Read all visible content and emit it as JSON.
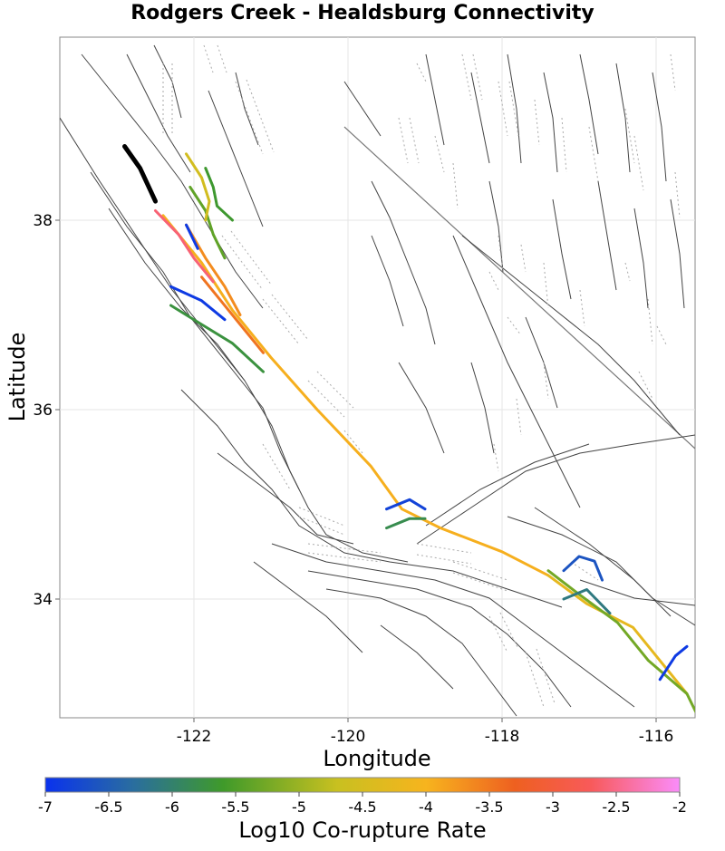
{
  "map": {
    "title": "Rodgers Creek - Healdsburg Connectivity",
    "xlabel": "Longitude",
    "ylabel": "Latitude",
    "x_ticks": [
      -122,
      -120,
      -118,
      -116
    ],
    "y_ticks": [
      34,
      36,
      38
    ],
    "xlim": [
      -123.75,
      -115.3
    ],
    "ylim": [
      32.8,
      40.0
    ],
    "grid": true
  },
  "colorbar": {
    "title": "Log10 Co-rupture Rate",
    "ticks": [
      "-7",
      "-6.5",
      "-6",
      "-5.5",
      "-5",
      "-4.5",
      "-4",
      "-3.5",
      "-3",
      "-2.5",
      "-2"
    ],
    "range": [
      -7,
      -2
    ],
    "colors": [
      "#0a32ee",
      "#2a6e9e",
      "#3f9a2a",
      "#c8c020",
      "#f7b41e",
      "#ee6020",
      "#f85a5a",
      "#fa8cfa"
    ]
  },
  "source_fault": {
    "name": "Rodgers Creek - Healdsburg",
    "color": "#000000",
    "path": [
      [
        -122.9,
        38.78
      ],
      [
        -122.7,
        38.55
      ],
      [
        -122.5,
        38.2
      ]
    ]
  },
  "connected_faults": [
    {
      "value": -4.1,
      "path": [
        [
          -122.4,
          38.05
        ],
        [
          -121.9,
          37.55
        ],
        [
          -121.5,
          37.05
        ],
        [
          -121.0,
          36.55
        ],
        [
          -120.4,
          36.0
        ],
        [
          -119.7,
          35.4
        ],
        [
          -119.3,
          34.95
        ],
        [
          -118.8,
          34.75
        ],
        [
          -118.0,
          34.5
        ],
        [
          -117.4,
          34.25
        ]
      ]
    },
    {
      "value": -4.4,
      "path": [
        [
          -117.4,
          34.25
        ],
        [
          -116.9,
          33.95
        ],
        [
          -116.3,
          33.7
        ],
        [
          -115.9,
          33.3
        ],
        [
          -115.6,
          33.0
        ]
      ]
    },
    {
      "value": -5.3,
      "path": [
        [
          -117.4,
          34.3
        ],
        [
          -117.0,
          34.05
        ],
        [
          -116.5,
          33.75
        ],
        [
          -116.1,
          33.35
        ],
        [
          -115.6,
          33.0
        ],
        [
          -115.45,
          32.75
        ]
      ]
    },
    {
      "value": -2.6,
      "path": [
        [
          -122.5,
          38.1
        ],
        [
          -122.2,
          37.85
        ],
        [
          -122.0,
          37.6
        ],
        [
          -121.75,
          37.35
        ]
      ]
    },
    {
      "value": -3.8,
      "path": [
        [
          -122.1,
          37.95
        ],
        [
          -121.85,
          37.6
        ],
        [
          -121.6,
          37.3
        ],
        [
          -121.4,
          37.0
        ]
      ]
    },
    {
      "value": -3.6,
      "path": [
        [
          -121.9,
          37.4
        ],
        [
          -121.4,
          36.9
        ],
        [
          -121.1,
          36.6
        ]
      ]
    },
    {
      "value": -5.4,
      "path": [
        [
          -122.05,
          38.35
        ],
        [
          -121.85,
          38.1
        ],
        [
          -121.75,
          37.85
        ],
        [
          -121.6,
          37.6
        ]
      ]
    },
    {
      "value": -5.6,
      "path": [
        [
          -121.85,
          38.55
        ],
        [
          -121.75,
          38.35
        ],
        [
          -121.7,
          38.15
        ],
        [
          -121.5,
          38.0
        ]
      ]
    },
    {
      "value": -4.7,
      "path": [
        [
          -122.1,
          38.7
        ],
        [
          -121.9,
          38.45
        ],
        [
          -121.8,
          38.2
        ],
        [
          -121.85,
          38.0
        ]
      ]
    },
    {
      "value": -5.7,
      "path": [
        [
          -122.3,
          37.1
        ],
        [
          -121.9,
          36.9
        ],
        [
          -121.5,
          36.7
        ],
        [
          -121.1,
          36.4
        ]
      ]
    },
    {
      "value": -6.9,
      "path": [
        [
          -122.3,
          37.3
        ],
        [
          -121.9,
          37.15
        ],
        [
          -121.6,
          36.95
        ]
      ]
    },
    {
      "value": -6.9,
      "path": [
        [
          -122.1,
          37.95
        ],
        [
          -121.95,
          37.7
        ]
      ]
    },
    {
      "value": -6.8,
      "path": [
        [
          -119.5,
          34.95
        ],
        [
          -119.2,
          35.05
        ],
        [
          -119.0,
          34.95
        ]
      ]
    },
    {
      "value": -5.8,
      "path": [
        [
          -119.5,
          34.75
        ],
        [
          -119.2,
          34.85
        ],
        [
          -119.0,
          34.85
        ]
      ]
    },
    {
      "value": -6.6,
      "path": [
        [
          -117.2,
          34.3
        ],
        [
          -117.0,
          34.45
        ],
        [
          -116.8,
          34.4
        ],
        [
          -116.7,
          34.2
        ]
      ]
    },
    {
      "value": -6.1,
      "path": [
        [
          -117.2,
          34.0
        ],
        [
          -116.9,
          34.1
        ],
        [
          -116.6,
          33.85
        ]
      ]
    },
    {
      "value": -6.9,
      "path": [
        [
          -115.95,
          33.15
        ],
        [
          -115.75,
          33.4
        ],
        [
          -115.6,
          33.5
        ]
      ]
    }
  ]
}
